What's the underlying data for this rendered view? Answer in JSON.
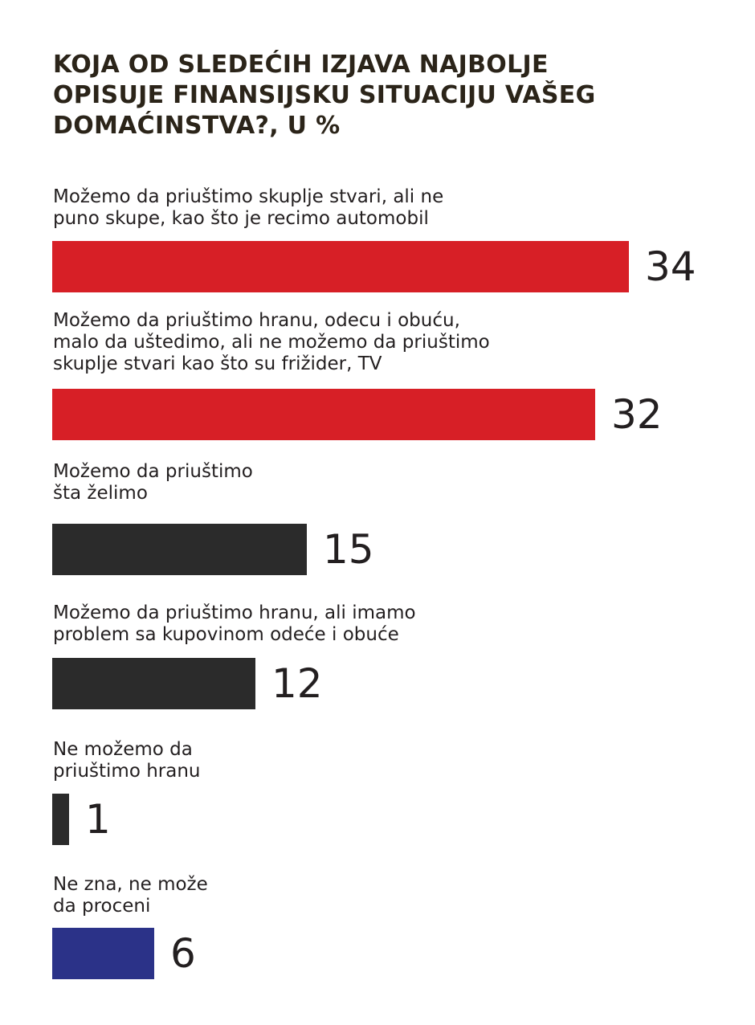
{
  "chart_data": {
    "type": "bar",
    "orientation": "horizontal",
    "title": "KOJA OD SLEDEĆIH IZJAVA NAJBOLJE\nOPISUJE FINANSIJSKU SITUACIJU VAŠEG\nDOMAĆINSTVA?, U %",
    "categories": [
      "Možemo da priuštimo skuplje stvari, ali ne\npuno skupe, kao što je recimo automobil",
      "Možemo da priuštimo hranu, odecu i obuću,\nmalo da uštedimo, ali ne možemo da priuštimo\nskuplje stvari kao što su frižider, TV",
      "Možemo da priuštimo\nšta želimo",
      "Možemo da priuštimo hranu, ali imamo\nproblem sa kupovinom odeće i obuće",
      "Ne možemo da\npriuštimo hranu",
      "Ne zna, ne može\nda proceni"
    ],
    "values": [
      34,
      32,
      15,
      12,
      1,
      6
    ],
    "value_labels": [
      "34",
      "32",
      "15",
      "12",
      "1",
      "6"
    ],
    "colors": [
      "#d71f26",
      "#d71f26",
      "#2b2b2b",
      "#2b2b2b",
      "#2b2b2b",
      "#2b3288"
    ],
    "xlim": [
      0,
      34
    ],
    "grid": false,
    "legend": "none"
  }
}
